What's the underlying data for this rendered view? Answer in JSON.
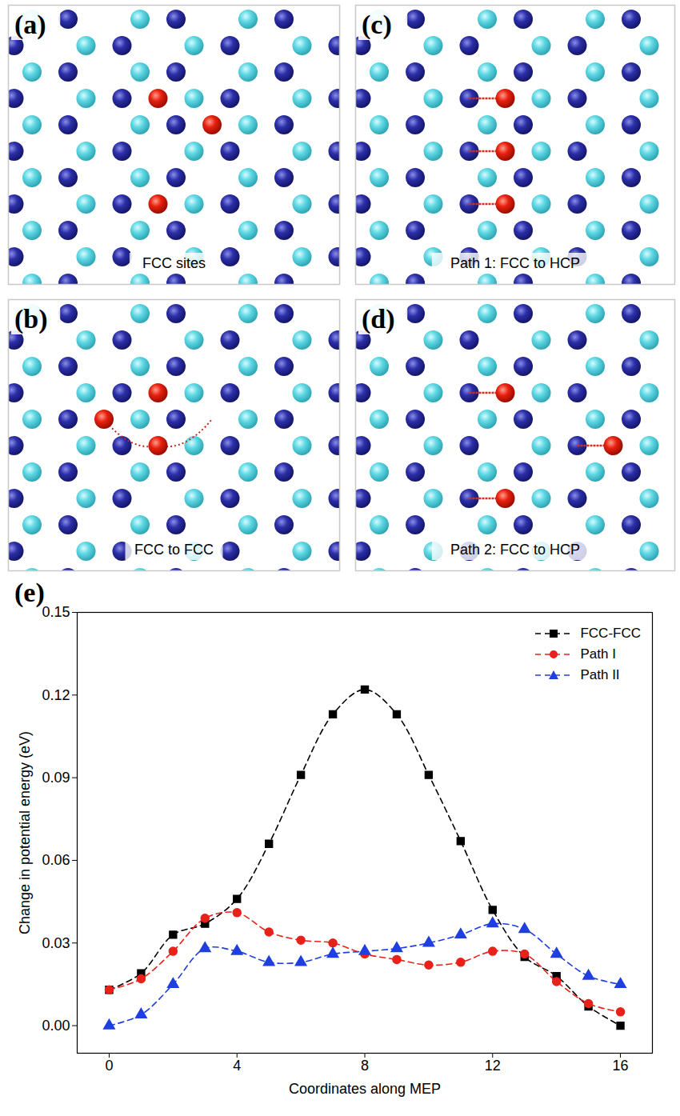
{
  "panels": [
    {
      "letter": "(a)",
      "caption": "FCC sites"
    },
    {
      "letter": "(b)",
      "caption": "FCC to FCC"
    },
    {
      "letter": "(c)",
      "caption": "Path 1: FCC to HCP"
    },
    {
      "letter": "(d)",
      "caption": "Path 2: FCC to HCP"
    }
  ],
  "chart_data": {
    "type": "line",
    "letter": "(e)",
    "xlabel": "Coordinates along MEP",
    "ylabel": "Change in potential energy (eV)",
    "x": [
      0,
      1,
      2,
      3,
      4,
      5,
      6,
      7,
      8,
      9,
      10,
      11,
      12,
      13,
      14,
      15,
      16
    ],
    "series": [
      {
        "name": "FCC-FCC",
        "color": "#000000",
        "marker": "square",
        "line_style": "dashed",
        "values": [
          0.013,
          0.019,
          0.033,
          0.037,
          0.046,
          0.066,
          0.091,
          0.113,
          0.122,
          0.113,
          0.091,
          0.067,
          0.042,
          0.025,
          0.018,
          0.007,
          0.0
        ]
      },
      {
        "name": "Path I",
        "color": "#e8211a",
        "marker": "circle",
        "line_style": "dashed",
        "values": [
          0.013,
          0.017,
          0.027,
          0.039,
          0.041,
          0.034,
          0.031,
          0.03,
          0.026,
          0.024,
          0.022,
          0.023,
          0.027,
          0.026,
          0.016,
          0.008,
          0.005
        ]
      },
      {
        "name": "Path II",
        "color": "#1f3fe0",
        "marker": "triangle",
        "line_style": "dashed",
        "values": [
          0.0,
          0.004,
          0.015,
          0.028,
          0.027,
          0.023,
          0.023,
          0.026,
          0.027,
          0.028,
          0.03,
          0.033,
          0.037,
          0.035,
          0.026,
          0.018,
          0.015
        ]
      }
    ],
    "xlim": [
      -1,
      17
    ],
    "xticks": [
      0,
      4,
      8,
      12,
      16
    ],
    "ylim": [
      -0.01,
      0.15
    ],
    "yticks": [
      {
        "value": 0,
        "label": "0.00"
      },
      0.03,
      0.06,
      0.09,
      0.12,
      0.15
    ],
    "legend": "upper right",
    "grid": false
  }
}
